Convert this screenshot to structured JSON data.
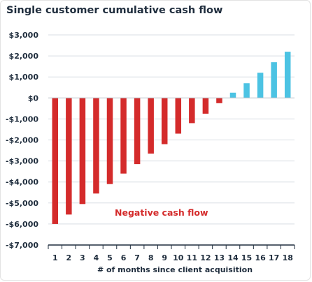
{
  "chart_data": {
    "type": "bar",
    "title": "Single customer cumulative cash flow",
    "xlabel": "# of months since client acquisition",
    "ylabel": "",
    "categories": [
      "1",
      "2",
      "3",
      "4",
      "5",
      "6",
      "7",
      "8",
      "9",
      "10",
      "11",
      "12",
      "13",
      "14",
      "15",
      "16",
      "17",
      "18"
    ],
    "values": [
      -6000,
      -5550,
      -5050,
      -4550,
      -4100,
      -3600,
      -3150,
      -2650,
      -2200,
      -1700,
      -1200,
      -750,
      -250,
      250,
      700,
      1200,
      1700,
      2200
    ],
    "ylim": [
      -7000,
      3000
    ],
    "yticks": [
      3000,
      2000,
      1000,
      0,
      -1000,
      -2000,
      -3000,
      -4000,
      -5000,
      -6000,
      -7000
    ],
    "ytick_labels": [
      "$3,000",
      "$2,000",
      "$1,000",
      "$0",
      "-$1,000",
      "-$2,000",
      "-$3,000",
      "-$4,000",
      "-$5,000",
      "-$6,000",
      "-$7,000"
    ],
    "annotation": "Negative cash flow",
    "grid": true,
    "colors": {
      "negative": "#d42b2b",
      "positive": "#4cc3e3",
      "grid": "#d8dde3",
      "axis": "#1f2d3d",
      "text": "#1f2d3d"
    }
  }
}
